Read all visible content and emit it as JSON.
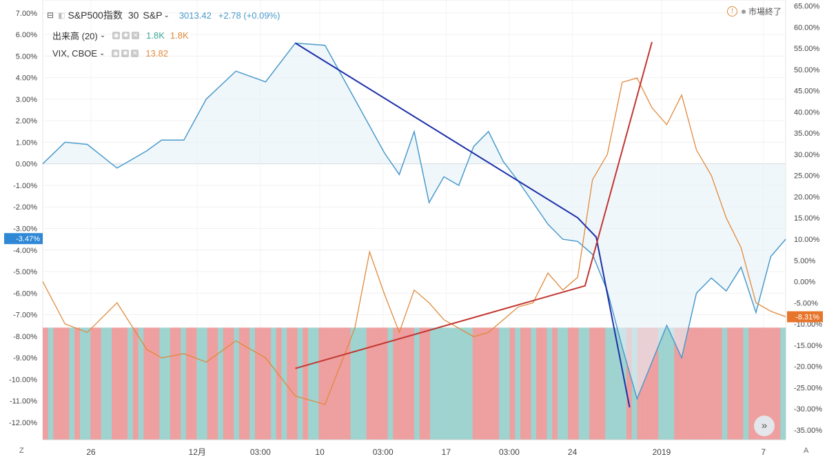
{
  "legend": {
    "main": {
      "collapse_icon": "minus-square-icon",
      "symbol": "S&P500指数",
      "interval": "30",
      "exchange": "S&P",
      "price": "3013.42",
      "change": "+2.78 (+0.09%)"
    },
    "volume": {
      "name": "出来高 (20)",
      "v1": "1.8K",
      "v2": "1.8K"
    },
    "vix": {
      "name": "VIX, CBOE",
      "value": "13.82"
    }
  },
  "market_status": {
    "icon": "exclamation-circle-icon",
    "dot_icon": "grey-dot-icon",
    "label": "市場終了"
  },
  "scale_buttons": {
    "left": "Z",
    "right": "A"
  },
  "nav_button": {
    "icon": "double-chevron-right-icon",
    "label": "»"
  },
  "colors": {
    "spx": "#4a9acb",
    "vix": "#e0893a",
    "up_bar": "#9ed3d0",
    "down_bar": "#ee9f9f",
    "blue_line": "#1b2fa8",
    "red_line": "#c1352f"
  },
  "chart_data": {
    "type": "line",
    "left_axis": {
      "unit": "%",
      "range": [
        -12.8,
        7.6
      ],
      "ticks": [
        "7.00%",
        "6.00%",
        "5.00%",
        "4.00%",
        "3.00%",
        "2.00%",
        "1.00%",
        "0.00%",
        "-1.00%",
        "-2.00%",
        "-3.00%",
        "-4.00%",
        "-5.00%",
        "-6.00%",
        "-7.00%",
        "-8.00%",
        "-9.00%",
        "-10.00%",
        "-11.00%",
        "-12.00%"
      ],
      "current_label": "-3.47%"
    },
    "right_axis": {
      "unit": "%",
      "range": [
        -37.3,
        66.4
      ],
      "ticks": [
        "65.00%",
        "60.00%",
        "55.00%",
        "50.00%",
        "45.00%",
        "40.00%",
        "35.00%",
        "30.00%",
        "25.00%",
        "20.00%",
        "15.00%",
        "10.00%",
        "5.00%",
        "0.00%",
        "-5.00%",
        "-10.00%",
        "-15.00%",
        "-20.00%",
        "-25.00%",
        "-30.00%",
        "-35.00%"
      ],
      "current_label": "-8.31%"
    },
    "x_axis": {
      "ticks": [
        "26",
        "12月",
        "03:00",
        "10",
        "03:00",
        "17",
        "03:00",
        "24",
        "2019",
        "7"
      ]
    },
    "series": [
      {
        "name": "S&P500指数",
        "axis": "left",
        "x": [
          0,
          3,
          6,
          10,
          14,
          16,
          19,
          22,
          26,
          30,
          34,
          38,
          42,
          46,
          48,
          50,
          52,
          54,
          56,
          58,
          60,
          62,
          64,
          66,
          68,
          70,
          72,
          74,
          76,
          78,
          80,
          82,
          84,
          86,
          88,
          90,
          92,
          94,
          96,
          98,
          100
        ],
        "values": [
          0.0,
          1.0,
          0.9,
          -0.2,
          0.6,
          1.1,
          1.1,
          3.0,
          4.3,
          3.8,
          5.6,
          5.5,
          3.0,
          0.5,
          -0.5,
          1.5,
          -1.8,
          -0.6,
          -1.0,
          0.8,
          1.5,
          0.1,
          -0.8,
          -1.8,
          -2.8,
          -3.5,
          -3.6,
          -4.2,
          -5.9,
          -8.5,
          -10.9,
          -9.2,
          -7.5,
          -9.0,
          -6.0,
          -5.3,
          -5.9,
          -4.8,
          -6.9,
          -4.3,
          -3.5
        ]
      },
      {
        "name": "VIX, CBOE",
        "axis": "right",
        "x": [
          0,
          3,
          6,
          10,
          14,
          16,
          19,
          22,
          26,
          30,
          34,
          38,
          42,
          44,
          46,
          48,
          50,
          52,
          54,
          56,
          58,
          60,
          62,
          64,
          66,
          68,
          70,
          72,
          74,
          76,
          78,
          80,
          82,
          84,
          86,
          88,
          90,
          92,
          94,
          96,
          98,
          100
        ],
        "values": [
          0.0,
          -10.0,
          -12.0,
          -5.0,
          -16.0,
          -18.0,
          -17.0,
          -19.0,
          -14.0,
          -18.0,
          -27.0,
          -29.0,
          -11.0,
          7.0,
          -3.0,
          -12.0,
          -2.0,
          -5.0,
          -9.0,
          -11.0,
          -13.0,
          -12.0,
          -9.0,
          -6.0,
          -5.0,
          2.0,
          -2.0,
          1.0,
          24.0,
          30.0,
          47.0,
          48.0,
          41.0,
          37.0,
          44.0,
          31.0,
          25.0,
          15.0,
          8.0,
          -5.0,
          -7.0,
          -8.3
        ]
      }
    ],
    "volume_bars": {
      "count": 140
    },
    "trendlines": [
      {
        "color": "blue",
        "points": [
          [
            34,
            5.6
          ],
          [
            72,
            -2.5
          ],
          [
            74.5,
            -3.4
          ],
          [
            79,
            -11.3
          ]
        ]
      },
      {
        "color": "red",
        "points": [
          [
            34,
            -20.5
          ],
          [
            73,
            -1.0
          ],
          [
            82,
            56.5
          ]
        ]
      }
    ],
    "grid": true
  }
}
